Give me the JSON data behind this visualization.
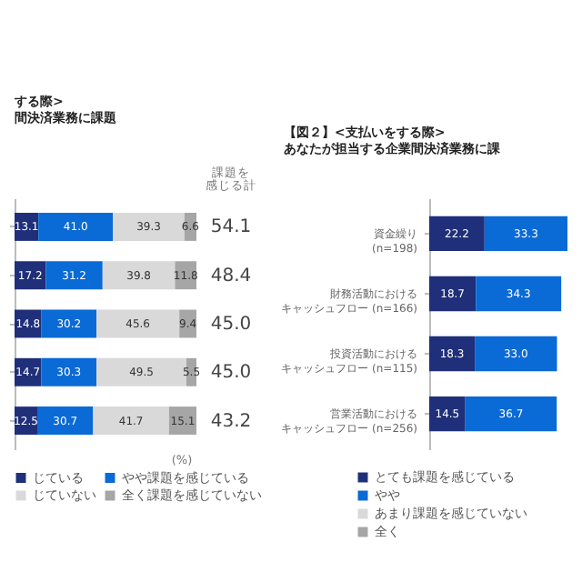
{
  "chart_data": [
    {
      "type": "bar",
      "orientation": "horizontal",
      "stacked": true,
      "legend": "bottom",
      "title": "する際>\n間決済業務に課題",
      "categories": [
        null,
        null,
        null,
        null,
        null
      ],
      "series": [
        {
          "name": "じている",
          "color": "#1f2f7a",
          "values": [
            13.1,
            17.2,
            14.8,
            14.7,
            12.5
          ],
          "value_labels": [
            "13.1",
            "17.2",
            "14.8",
            "14.7",
            "12.5"
          ]
        },
        {
          "name": "やや課題を感じている",
          "color": "#0a6ad6",
          "values": [
            41.0,
            31.2,
            30.2,
            30.3,
            30.7
          ],
          "value_labels": [
            "41.0",
            "31.2",
            "30.2",
            "30.3",
            "30.7"
          ]
        },
        {
          "name": "じていない",
          "color": "#d9d9d9",
          "values": [
            39.3,
            39.8,
            45.6,
            49.5,
            41.7
          ],
          "value_labels": [
            "39.3",
            "39.8",
            "45.6",
            "49.5",
            "41.7"
          ]
        },
        {
          "name": "全く課題を感じていない",
          "color": "#a6a6a6",
          "values": [
            6.6,
            11.8,
            9.4,
            5.5,
            15.1
          ],
          "value_labels": [
            "6.6",
            "11.8",
            "9.4",
            "5.5",
            "15.1"
          ]
        }
      ],
      "annotations": [
        "課題を感じる計",
        "54.1",
        "48.4",
        "45.0",
        "45.0",
        "43.2",
        "(%)"
      ]
    },
    {
      "type": "bar",
      "orientation": "horizontal",
      "stacked": true,
      "legend": "bottom",
      "title": "【図２】<支払いをする際>\nあなたが担当する企業間決済業務に課",
      "categories": [
        "資金繰り (n=198)",
        "財務活動におけるキャッシュフロー (n=166)",
        "投資活動におけるキャッシュフロー (n=115)",
        "営業活動におけるキャッシュフロー (n=256)"
      ],
      "series": [
        {
          "name": "とても課題を感じている",
          "color": "#1f2f7a",
          "values": [
            22.2,
            18.7,
            18.3,
            14.5
          ],
          "value_labels": [
            "22.2",
            "18.7",
            "18.3",
            "14.5"
          ]
        },
        {
          "name": "やや",
          "color": "#0a6ad6",
          "values": [
            33.3,
            34.3,
            33.0,
            36.7
          ],
          "value_labels": [
            "33.3",
            "34.3",
            "33.0",
            "36.7"
          ]
        },
        {
          "name": "あまり課題を感じていない",
          "color": "#d9d9d9",
          "values": [
            null,
            null,
            null,
            null
          ]
        },
        {
          "name": "全く",
          "color": "#a6a6a6",
          "values": [
            null,
            null,
            null,
            null
          ]
        }
      ]
    }
  ]
}
